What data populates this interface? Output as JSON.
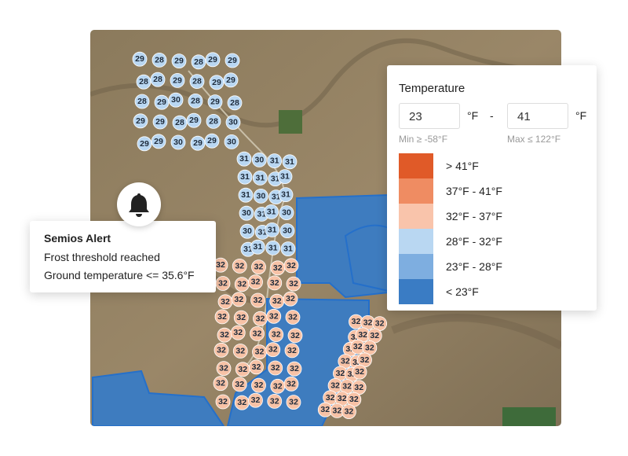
{
  "alert": {
    "title": "Semios Alert",
    "lines": [
      "Frost threshold reached",
      "Ground temperature <= 35.6°F"
    ]
  },
  "legend": {
    "title": "Temperature",
    "min_input": "23",
    "max_input": "41",
    "unit": "°F",
    "separator": "-",
    "min_hint": "Min ≥ -58°F",
    "max_hint": "Max ≤ 122°F",
    "items": [
      {
        "label": "> 41°F",
        "color": "#e05a28"
      },
      {
        "label": "37°F - 41°F",
        "color": "#ef8c62"
      },
      {
        "label": "32°F - 37°F",
        "color": "#f9c4ab"
      },
      {
        "label": "28°F - 32°F",
        "color": "#b9d7f2"
      },
      {
        "label": "23°F - 28°F",
        "color": "#7eaee0"
      },
      {
        "label": "< 23°F",
        "color": "#3a7cc4"
      }
    ]
  },
  "map": {
    "clusters": [
      {
        "color": "#b9d7f2",
        "values": [
          29,
          28,
          29,
          28,
          29,
          29,
          28,
          28,
          29,
          28,
          29,
          29,
          28,
          29,
          30,
          28,
          29,
          28,
          29,
          29,
          28,
          29,
          28,
          30,
          29,
          29,
          30,
          29,
          29,
          30
        ]
      },
      {
        "color": "#b9d7f2",
        "values": [
          31,
          30,
          31,
          31,
          31,
          31,
          31,
          31,
          31,
          30,
          31,
          31,
          30,
          31,
          31,
          30,
          30,
          31,
          31,
          30,
          31,
          31,
          31,
          31
        ]
      },
      {
        "color": "#f7c2a6",
        "values": [
          32,
          32,
          32,
          32,
          32,
          32,
          32,
          32,
          32,
          32,
          32,
          32,
          32,
          32,
          32,
          32,
          32,
          32,
          32,
          32,
          32,
          32,
          32,
          32,
          32,
          32,
          32,
          32,
          32,
          32,
          32,
          32,
          32,
          32,
          32,
          32,
          32,
          32,
          32,
          32,
          32,
          32,
          32,
          32,
          32
        ]
      },
      {
        "color": "#f7c2a6",
        "values": [
          32,
          32,
          32,
          32,
          32,
          32,
          32,
          32,
          32,
          32,
          32,
          32,
          32,
          32,
          32,
          32,
          32,
          32,
          32,
          32,
          32,
          32,
          32,
          32
        ]
      }
    ]
  }
}
